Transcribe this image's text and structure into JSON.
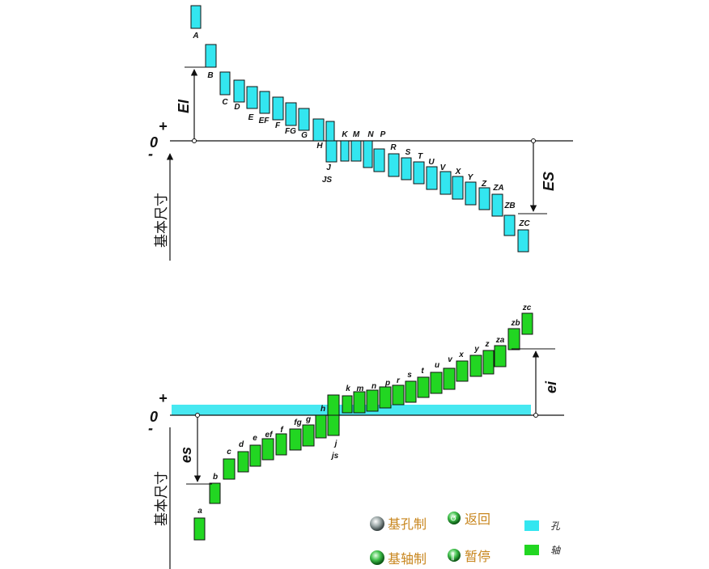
{
  "hole_diagram": {
    "zero_label": "0",
    "plus_label": "+",
    "minus_label": "-",
    "basic_size_label": "基本尺寸",
    "EI_label": "EI",
    "ES_label": "ES",
    "color": "#33e6f0",
    "deviations": [
      {
        "label": "A"
      },
      {
        "label": "B"
      },
      {
        "label": "C"
      },
      {
        "label": "D"
      },
      {
        "label": "E"
      },
      {
        "label": "EF"
      },
      {
        "label": "F"
      },
      {
        "label": "FG"
      },
      {
        "label": "G"
      },
      {
        "label": "H"
      },
      {
        "label": "J"
      },
      {
        "label": "JS"
      },
      {
        "label": "K"
      },
      {
        "label": "M"
      },
      {
        "label": "N"
      },
      {
        "label": "P"
      },
      {
        "label": "R"
      },
      {
        "label": "S"
      },
      {
        "label": "T"
      },
      {
        "label": "U"
      },
      {
        "label": "V"
      },
      {
        "label": "X"
      },
      {
        "label": "Y"
      },
      {
        "label": "Z"
      },
      {
        "label": "ZA"
      },
      {
        "label": "ZB"
      },
      {
        "label": "ZC"
      }
    ]
  },
  "shaft_diagram": {
    "zero_label": "0",
    "plus_label": "+",
    "minus_label": "-",
    "basic_size_label": "基本尺寸",
    "es_label": "es",
    "ei_label": "ei",
    "color": "#22d622",
    "deviations": [
      {
        "label": "a"
      },
      {
        "label": "b"
      },
      {
        "label": "c"
      },
      {
        "label": "d"
      },
      {
        "label": "e"
      },
      {
        "label": "ef"
      },
      {
        "label": "f"
      },
      {
        "label": "fg"
      },
      {
        "label": "g"
      },
      {
        "label": "h"
      },
      {
        "label": "j"
      },
      {
        "label": "js"
      },
      {
        "label": "k"
      },
      {
        "label": "m"
      },
      {
        "label": "n"
      },
      {
        "label": "p"
      },
      {
        "label": "r"
      },
      {
        "label": "s"
      },
      {
        "label": "t"
      },
      {
        "label": "u"
      },
      {
        "label": "v"
      },
      {
        "label": "x"
      },
      {
        "label": "y"
      },
      {
        "label": "z"
      },
      {
        "label": "za"
      },
      {
        "label": "zb"
      },
      {
        "label": "zc"
      }
    ]
  },
  "menu": {
    "hole_basis_label": "基孔制",
    "shaft_basis_label": "基轴制",
    "back_label": "返回",
    "pause_label": "暂停"
  },
  "legend": {
    "hole_label": "孔",
    "shaft_label": "轴",
    "hole_color": "#33e6f0",
    "shaft_color": "#22d622"
  }
}
